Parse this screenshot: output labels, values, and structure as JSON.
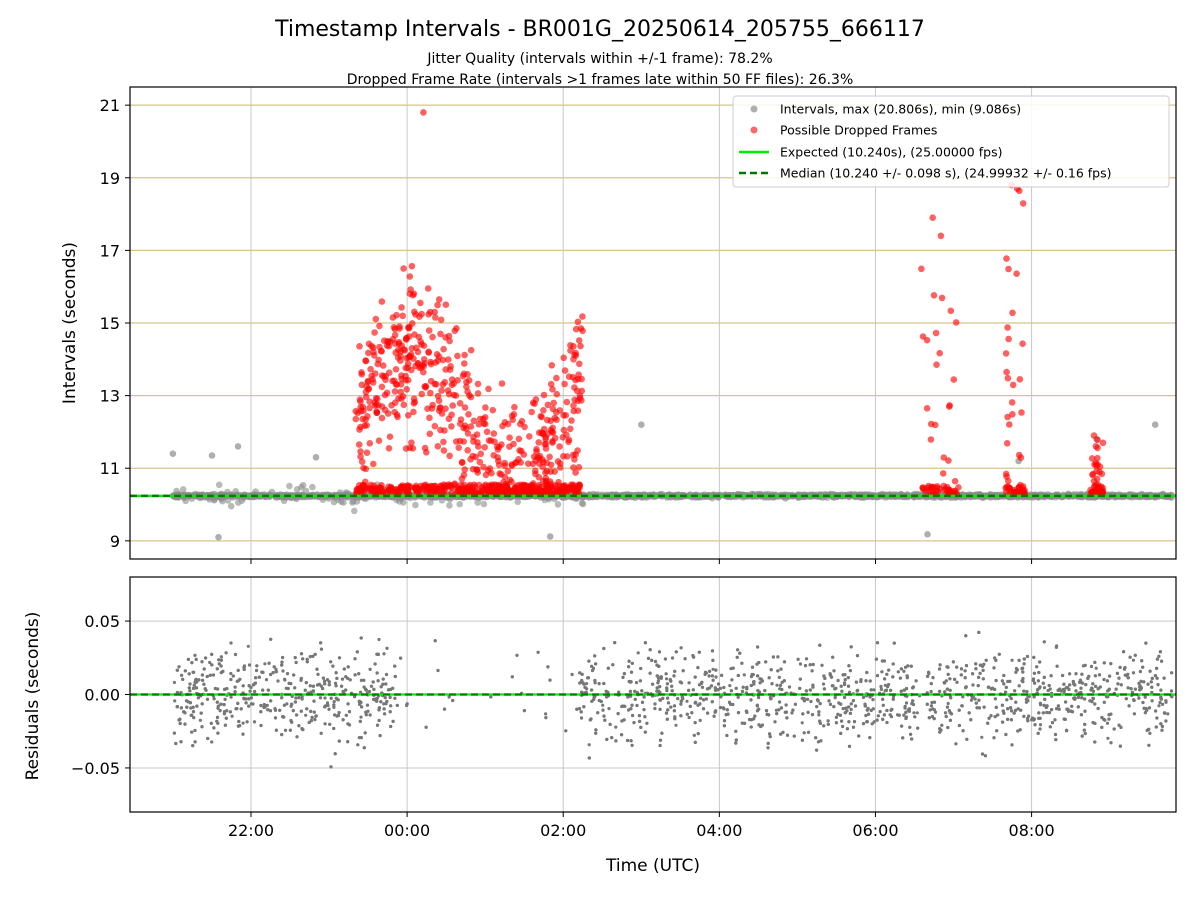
{
  "chart_data": [
    {
      "type": "scatter",
      "title": "Timestamp Intervals - BR001G_20250614_205755_666117",
      "subtitle_lines": [
        "Jitter Quality (intervals within +/-1 frame): 78.2%",
        "Dropped Frame Rate (intervals >1 frames late within 50 FF files): 26.3%"
      ],
      "xlabel": "",
      "ylabel": "Intervals (seconds)",
      "x_time_range_hours": [
        20.45,
        9.85
      ],
      "xticks": [
        "22:00",
        "00:00",
        "02:00",
        "04:00",
        "06:00",
        "08:00"
      ],
      "ylim": [
        8.5,
        21.5
      ],
      "yticks": [
        "9",
        "11",
        "13",
        "15",
        "17",
        "19",
        "21"
      ],
      "grid": true,
      "legend_position": "top-right",
      "series": [
        {
          "name": "Intervals, max (20.806s), min (9.086s)",
          "color": "#8c8c8c",
          "marker": "circle"
        },
        {
          "name": "Possible Dropped Frames",
          "color": "#ff0000",
          "marker": "circle"
        },
        {
          "name": "Expected (10.240s), (25.00000 fps)",
          "color": "#00ee00",
          "line": "solid",
          "y": 10.24
        },
        {
          "name": "Median (10.240 +/- 0.098 s), (24.99932 +/- 0.16 fps)",
          "color": "#007700",
          "line": "dashed",
          "y": 10.24
        }
      ],
      "dropped_clusters": [
        {
          "start": "23:20",
          "end": "02:15",
          "min": 10.3,
          "max": 20.8
        },
        {
          "start": "06:35",
          "end": "07:05",
          "min": 10.3,
          "max": 17.9
        },
        {
          "start": "07:40",
          "end": "07:55",
          "min": 10.3,
          "max": 18.8
        },
        {
          "start": "08:45",
          "end": "08:55",
          "min": 10.3,
          "max": 11.9
        }
      ],
      "outlier_points": [
        {
          "x": "21:00",
          "y": 11.4
        },
        {
          "x": "21:30",
          "y": 11.35
        },
        {
          "x": "21:50",
          "y": 11.6
        },
        {
          "x": "22:50",
          "y": 11.3
        },
        {
          "x": "21:35",
          "y": 9.1
        },
        {
          "x": "01:50",
          "y": 9.12
        },
        {
          "x": "03:00",
          "y": 12.2
        },
        {
          "x": "06:40",
          "y": 9.18
        },
        {
          "x": "07:50",
          "y": 11.2
        },
        {
          "x": "08:50",
          "y": 11.8
        },
        {
          "x": "09:35",
          "y": 12.2
        }
      ]
    },
    {
      "type": "scatter",
      "xlabel": "Time (UTC)",
      "ylabel": "Residuals (seconds)",
      "ylim": [
        -0.08,
        0.08
      ],
      "yticks": [
        "−0.05",
        "0.00",
        "0.05"
      ],
      "xticks": [
        "22:00",
        "00:00",
        "02:00",
        "04:00",
        "06:00",
        "08:00"
      ],
      "grid": true,
      "series": [
        {
          "name": "",
          "color": "#777777",
          "marker": "dot"
        },
        {
          "name": "",
          "color": "#00ee00",
          "line": "solid",
          "y": 0.0
        },
        {
          "name": "",
          "color": "#007700",
          "line": "dashed",
          "y": 0.0
        }
      ]
    }
  ]
}
